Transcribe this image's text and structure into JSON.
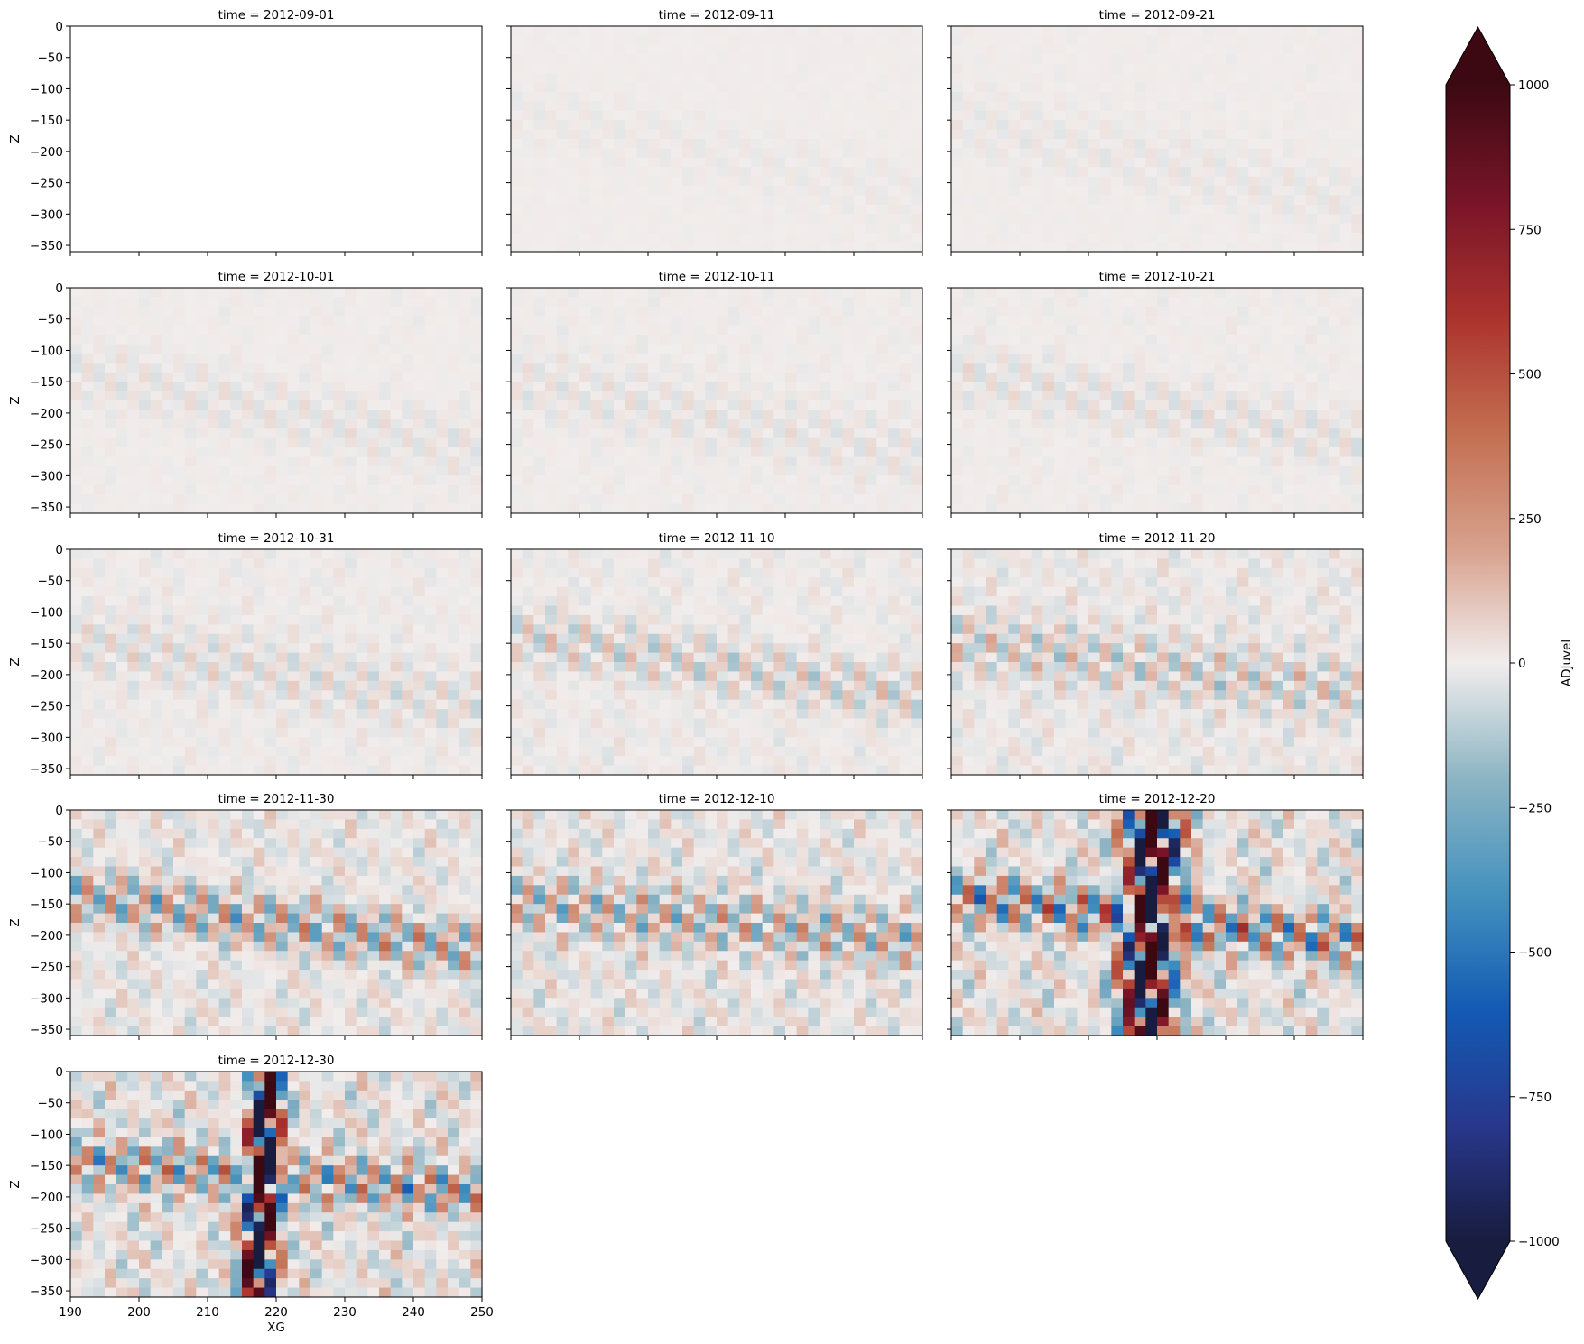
{
  "chart_data": {
    "type": "heatmap",
    "variable": "ADJuvel",
    "colormap": "balance",
    "vmin": -1000,
    "vmax": 1000,
    "extend": "both",
    "colorbar_ticks": [
      1000,
      750,
      500,
      250,
      0,
      -250,
      -500,
      -750,
      -1000
    ],
    "colorbar_tick_labels": [
      "1000",
      "750",
      "500",
      "250",
      "0",
      "−250",
      "−500",
      "−750",
      "−1000"
    ],
    "x": {
      "label": "XG",
      "range": [
        190,
        250
      ],
      "ticks": [
        190,
        200,
        210,
        220,
        230,
        240,
        250
      ],
      "tick_labels": [
        "190",
        "200",
        "210",
        "220",
        "230",
        "240",
        "250"
      ]
    },
    "y": {
      "label": "Z",
      "range": [
        -360,
        0
      ],
      "ticks": [
        0,
        -50,
        -100,
        -150,
        -200,
        -250,
        -300,
        -350
      ],
      "tick_labels": [
        "0",
        "−50",
        "−100",
        "−150",
        "−200",
        "−250",
        "−300",
        "−350"
      ]
    },
    "panels": [
      {
        "title": "time = 2012-09-01",
        "max_abs": 0
      },
      {
        "title": "time = 2012-09-11",
        "max_abs": 40
      },
      {
        "title": "time = 2012-09-21",
        "max_abs": 60
      },
      {
        "title": "time = 2012-10-01",
        "max_abs": 90
      },
      {
        "title": "time = 2012-10-11",
        "max_abs": 100
      },
      {
        "title": "time = 2012-10-21",
        "max_abs": 110
      },
      {
        "title": "time = 2012-10-31",
        "max_abs": 180
      },
      {
        "title": "time = 2012-11-10",
        "max_abs": 260
      },
      {
        "title": "time = 2012-11-20",
        "max_abs": 380
      },
      {
        "title": "time = 2012-11-30",
        "max_abs": 650
      },
      {
        "title": "time = 2012-12-10",
        "max_abs": 700
      },
      {
        "title": "time = 2012-12-20",
        "max_abs": 1000
      },
      {
        "title": "time = 2012-12-30",
        "max_abs": 1000
      }
    ]
  }
}
